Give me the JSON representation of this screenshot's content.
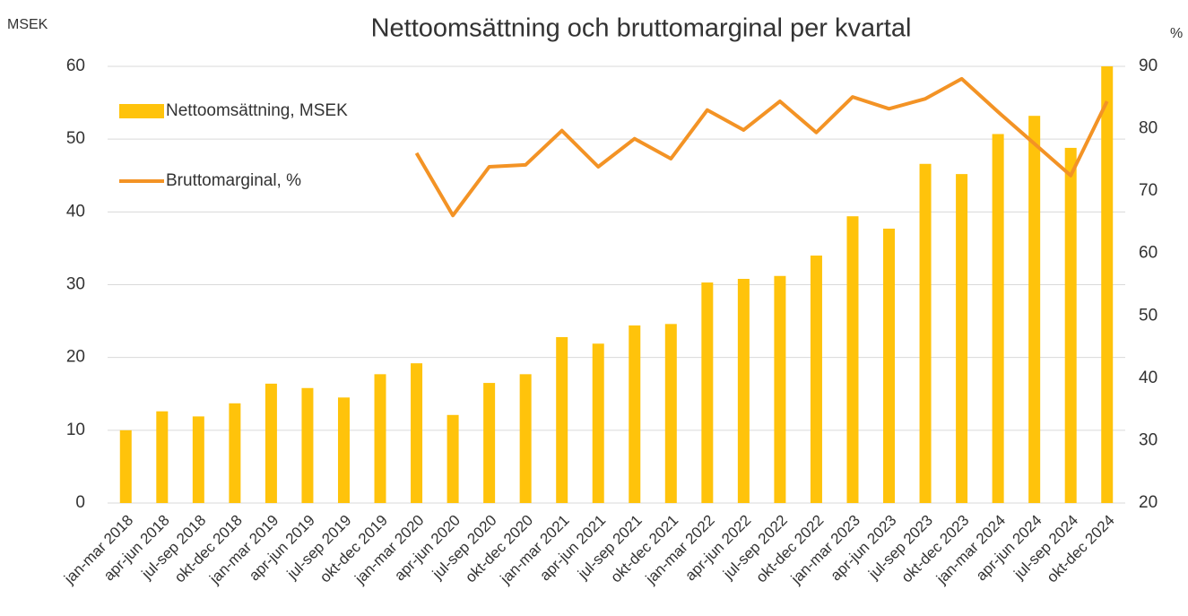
{
  "chart_data": {
    "type": "bar_line",
    "title": "Nettoomsättning och bruttomarginal per kvartal",
    "y_label": "MSEK",
    "y2_label": "%",
    "categories": [
      "jan-mar 2018",
      "apr-jun 2018",
      "jul-sep 2018",
      "okt-dec 2018",
      "jan-mar 2019",
      "apr-jun 2019",
      "jul-sep 2019",
      "okt-dec 2019",
      "jan-mar 2020",
      "apr-jun 2020",
      "jul-sep 2020",
      "okt-dec 2020",
      "jan-mar 2021",
      "apr-jun 2021",
      "jul-sep 2021",
      "okt-dec 2021",
      "jan-mar 2022",
      "apr-jun 2022",
      "jul-sep 2022",
      "okt-dec 2022",
      "jan-mar 2023",
      "apr-jun 2023",
      "jul-sep 2023",
      "okt-dec 2023",
      "jan-mar 2024",
      "apr-jun 2024",
      "jul-sep 2024",
      "okt-dec 2024"
    ],
    "series": [
      {
        "name": "Nettoomsättning, MSEK",
        "type": "bar",
        "color": "#ffc30b",
        "values": [
          10.0,
          12.6,
          11.9,
          13.7,
          16.4,
          15.8,
          14.5,
          17.7,
          19.2,
          12.1,
          16.5,
          17.7,
          22.8,
          21.9,
          24.4,
          24.6,
          30.3,
          30.8,
          31.2,
          34.0,
          39.4,
          37.7,
          46.6,
          45.2,
          50.7,
          53.2,
          48.8,
          60.0
        ]
      },
      {
        "name": "Bruttomarginal, %",
        "type": "line",
        "axis": "y2",
        "color": "#f39325",
        "values": [
          null,
          null,
          null,
          null,
          null,
          null,
          null,
          null,
          76.1,
          66.1,
          73.9,
          74.2,
          79.7,
          73.9,
          78.4,
          75.2,
          83.0,
          79.8,
          84.4,
          79.4,
          85.1,
          83.2,
          84.8,
          88.0,
          82.7,
          77.6,
          72.5,
          84.4
        ]
      }
    ],
    "ylim": [
      0,
      60
    ],
    "yticks": [
      0,
      10,
      20,
      30,
      40,
      50,
      60
    ],
    "y2lim": [
      20,
      90
    ],
    "y2ticks": [
      20,
      30,
      40,
      50,
      60,
      70,
      80,
      90
    ],
    "grid": true,
    "legend": "upper left"
  }
}
